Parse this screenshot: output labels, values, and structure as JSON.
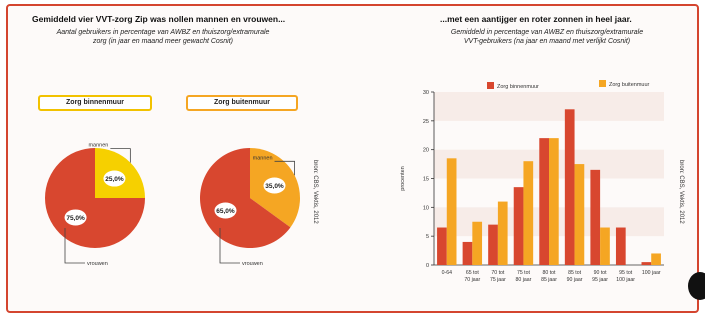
{
  "left": {
    "title": "Gemiddeld vier VVT-zorg Zip was nollen mannen en vrouwen...",
    "subtitle_line1": "Aantal gebruikers in percentage van AWBZ en thuiszorg/extramurale",
    "subtitle_line2": "zorg (in jaar en maand meer gewacht Cosnit)",
    "source": "bron: CBS, Vektis, 2012"
  },
  "right": {
    "title": "...met een aantijger en roter zonnen in heel jaar.",
    "subtitle_line1": "Gemiddeld in percentage van AWBZ en thuiszorg/extramurale",
    "subtitle_line2": "VVT-gebruikers (na jaar en maand met verlijkt Cosnit)",
    "source": "bron: CBS, Vektis, 2012"
  },
  "colors": {
    "red": "#d8472f",
    "yellow": "#f6d000",
    "orange": "#f5a623",
    "frame": "#d4452f"
  },
  "chart_data": [
    {
      "type": "pie",
      "label": "Zorg binnenmuur",
      "slices": [
        {
          "name": "mannen",
          "value": 25,
          "label": "25,0%",
          "color": "#f6d000"
        },
        {
          "name": "vrouwen",
          "value": 75,
          "label": "75,0%",
          "color": "#d8472f"
        }
      ]
    },
    {
      "type": "pie",
      "label": "Zorg buitenmuur",
      "slices": [
        {
          "name": "mannen",
          "value": 35,
          "label": "35,0%",
          "color": "#f5a623"
        },
        {
          "name": "vrouwen",
          "value": 65,
          "label": "65,0%",
          "color": "#d8472f"
        }
      ]
    },
    {
      "type": "bar",
      "ylabel": "procenten",
      "ylim": [
        0,
        30
      ],
      "yticks": [
        0,
        5,
        10,
        15,
        20,
        25,
        30
      ],
      "categories": [
        "0-64",
        "65 tot 70 jaar",
        "70 tot 75 jaar",
        "75 tot 80 jaar",
        "80 tot 85 jaar",
        "85 tot 90 jaar",
        "90 tot 95 jaar",
        "95 tot 100 jaar",
        "100 jaar"
      ],
      "category_lines": [
        [
          "0-64"
        ],
        [
          "65 tot",
          "70 jaar"
        ],
        [
          "70 tot",
          "75 jaar"
        ],
        [
          "75 tot",
          "80 jaar"
        ],
        [
          "80 tot",
          "85 jaar"
        ],
        [
          "85 tot",
          "90 jaar"
        ],
        [
          "90 tot",
          "95 jaar"
        ],
        [
          "95 tot",
          "100 jaar"
        ],
        [
          "100 jaar"
        ]
      ],
      "series": [
        {
          "name": "Zorg binnenmuur",
          "color": "#d8472f",
          "values": [
            6.5,
            4,
            7,
            13.5,
            22,
            27,
            16.5,
            6.5,
            0.5
          ]
        },
        {
          "name": "Zorg buitenmuur",
          "color": "#f5a623",
          "values": [
            18.5,
            7.5,
            11,
            18,
            22,
            17.5,
            6.5,
            0,
            2
          ]
        }
      ],
      "legend_position": "top"
    }
  ]
}
